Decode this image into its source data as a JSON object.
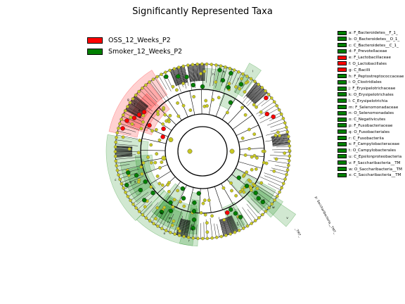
{
  "title": "Significantly Represented Taxa",
  "colors": {
    "oss": "#ff0000",
    "smoker": "#008000",
    "node": "#c8c820"
  },
  "groups": [
    {
      "name": "OSS_12_Weeks_P2",
      "color": "#ff0000"
    },
    {
      "name": "Smoker_12_Weeks_P2",
      "color": "#008000"
    }
  ],
  "taxa": [
    {
      "label": "a: F_Bacteroidetes__F_1_",
      "group": "smoker"
    },
    {
      "label": "b: O_Bacteroidetes__O_1_",
      "group": "smoker"
    },
    {
      "label": "c: C_Bacteroidetes__C_1_",
      "group": "smoker"
    },
    {
      "label": "d: F_Prevotellaceae",
      "group": "smoker"
    },
    {
      "label": "e: F_Lactobacillaceae",
      "group": "oss"
    },
    {
      "label": "f: O_Lactobacillales",
      "group": "oss"
    },
    {
      "label": "g: C_Bacilli",
      "group": "oss"
    },
    {
      "label": "h: F_Peptostreptococcaceae",
      "group": "smoker"
    },
    {
      "label": "i: O_Clostridiales",
      "group": "smoker"
    },
    {
      "label": "j: F_Erysipelotrichaceae",
      "group": "smoker"
    },
    {
      "label": "k: O_Erysipelotrichales",
      "group": "smoker"
    },
    {
      "label": "l: C_Erysipelotrichia",
      "group": "smoker"
    },
    {
      "label": "m: F_Selenomonadaceae",
      "group": "smoker"
    },
    {
      "label": "n: O_Selenomonadales",
      "group": "smoker"
    },
    {
      "label": "o: C_Negativicutes",
      "group": "smoker"
    },
    {
      "label": "p: F_Fusobacteriaceae",
      "group": "smoker"
    },
    {
      "label": "q: O_Fusobacteriales",
      "group": "smoker"
    },
    {
      "label": "r: C_Fusobacteriia",
      "group": "smoker"
    },
    {
      "label": "s: F_Campylobacteraceae",
      "group": "smoker"
    },
    {
      "label": "t: O_Campylobacterales",
      "group": "smoker"
    },
    {
      "label": "u: C_Epsilonproteobacteria",
      "group": "smoker"
    },
    {
      "label": "v: F_Saccharibacteria__TM",
      "group": "smoker"
    },
    {
      "label": "w: O_Saccharibacteria__TM",
      "group": "smoker"
    },
    {
      "label": "x: C_Saccharibacteria__TM",
      "group": "smoker"
    }
  ],
  "outer_labels": [
    {
      "text": "p: Saccharibacteria__TM7_"
    },
    {
      "text": "_TM7_"
    }
  ]
}
